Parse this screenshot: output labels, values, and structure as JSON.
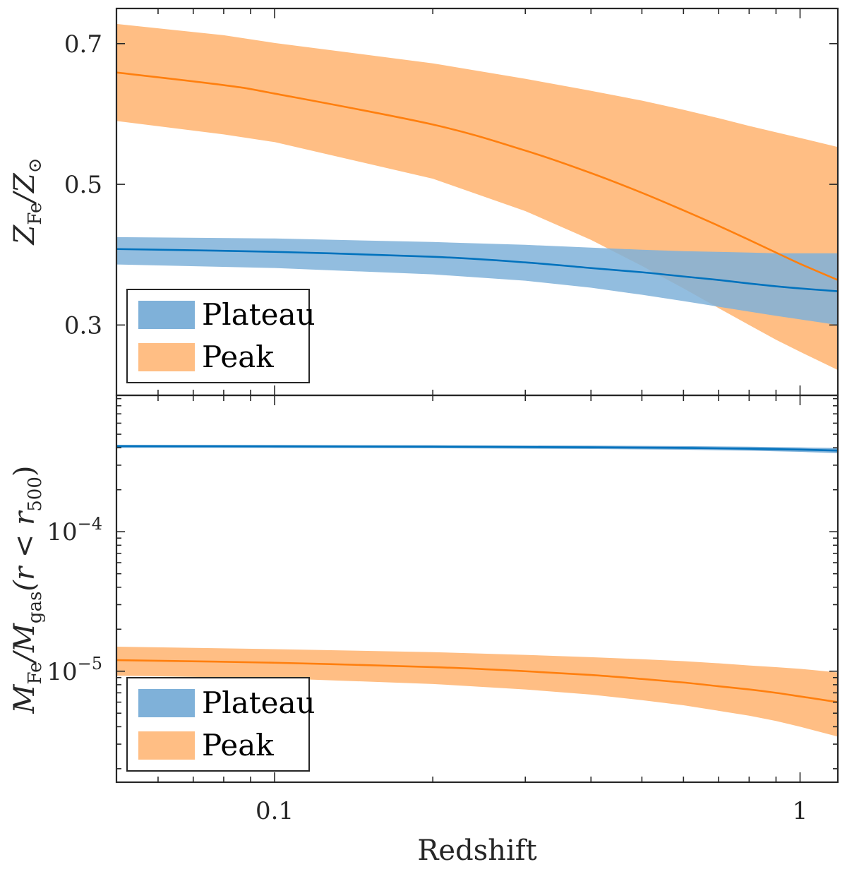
{
  "colors": {
    "plateau_line": "#0072BD",
    "plateau_band": "#7FB1D9",
    "peak_line": "#FF7F0E",
    "peak_band": "#FFBE84",
    "axes": "#262626"
  },
  "chart_data": [
    {
      "type": "line",
      "panel": "top",
      "xlabel": "",
      "ylabel": "Z_Fe/Z_⊙",
      "ylabel_parts": {
        "main": "Z",
        "sub": "Fe",
        "slash": "/Z",
        "sub2": "⊙"
      },
      "xscale": "log",
      "xlim": [
        0.05,
        1.18
      ],
      "ylim": [
        0.2,
        0.75
      ],
      "yticks": [
        0.3,
        0.5,
        0.7
      ],
      "ytick_labels": [
        "0.3",
        "0.5",
        "0.7"
      ],
      "grid": false,
      "legend": {
        "placement": "bottom-left",
        "entries": [
          "Plateau",
          "Peak"
        ]
      },
      "series": [
        {
          "name": "Plateau",
          "x": [
            0.05,
            0.1,
            0.2,
            0.3,
            0.4,
            0.5,
            0.6,
            0.7,
            0.8,
            0.9,
            1.0,
            1.18
          ],
          "y": [
            0.408,
            0.404,
            0.397,
            0.389,
            0.381,
            0.375,
            0.369,
            0.364,
            0.359,
            0.355,
            0.352,
            0.348
          ],
          "y_low": [
            0.386,
            0.381,
            0.372,
            0.363,
            0.353,
            0.343,
            0.334,
            0.326,
            0.319,
            0.313,
            0.308,
            0.3
          ],
          "y_high": [
            0.425,
            0.423,
            0.418,
            0.414,
            0.41,
            0.407,
            0.405,
            0.404,
            0.403,
            0.402,
            0.402,
            0.402
          ]
        },
        {
          "name": "Peak",
          "x": [
            0.05,
            0.08,
            0.1,
            0.2,
            0.3,
            0.4,
            0.5,
            0.6,
            0.7,
            0.8,
            0.9,
            1.0,
            1.18
          ],
          "y": [
            0.659,
            0.641,
            0.629,
            0.585,
            0.548,
            0.516,
            0.488,
            0.463,
            0.441,
            0.421,
            0.403,
            0.387,
            0.364
          ],
          "y_low": [
            0.59,
            0.571,
            0.56,
            0.508,
            0.462,
            0.421,
            0.384,
            0.352,
            0.324,
            0.3,
            0.279,
            0.262,
            0.236
          ],
          "y_high": [
            0.728,
            0.712,
            0.701,
            0.672,
            0.65,
            0.633,
            0.619,
            0.606,
            0.594,
            0.583,
            0.574,
            0.566,
            0.553
          ]
        }
      ]
    },
    {
      "type": "line",
      "panel": "bottom",
      "xlabel": "Redshift",
      "ylabel": "M_Fe/M_gas(r < r_500)",
      "ylabel_parts": {
        "main": "M",
        "sub": "Fe",
        "slash": "/M",
        "sub2": "gas",
        "rest": "(r < r",
        "sub3": "500",
        "close": ")"
      },
      "xscale": "log",
      "yscale": "log",
      "xlim": [
        0.05,
        1.18
      ],
      "ylim": [
        1.6e-06,
        0.00095
      ],
      "yticks": [
        1e-05,
        0.0001
      ],
      "ytick_labels": [
        {
          "base": "10",
          "exp": "−5"
        },
        {
          "base": "10",
          "exp": "−4"
        }
      ],
      "xticks": [
        0.1,
        1
      ],
      "xtick_labels": [
        "0.1",
        "1"
      ],
      "grid": false,
      "legend": {
        "placement": "bottom-left",
        "entries": [
          "Plateau",
          "Peak"
        ]
      },
      "series": [
        {
          "name": "Plateau",
          "x": [
            0.05,
            0.1,
            0.2,
            0.4,
            0.6,
            0.8,
            1.0,
            1.18
          ],
          "y": [
            0.00041,
            0.000409,
            0.000407,
            0.000403,
            0.000399,
            0.000394,
            0.000388,
            0.000382
          ],
          "y_low": [
            0.0004,
            0.000399,
            0.000397,
            0.000392,
            0.000387,
            0.000381,
            0.000374,
            0.000366
          ],
          "y_high": [
            0.00042,
            0.000419,
            0.000417,
            0.000414,
            0.000411,
            0.000407,
            0.000402,
            0.000398
          ]
        },
        {
          "name": "Peak",
          "x": [
            0.05,
            0.1,
            0.2,
            0.3,
            0.4,
            0.5,
            0.6,
            0.7,
            0.8,
            0.9,
            1.0,
            1.18
          ],
          "y": [
            1.2e-05,
            1.15e-05,
            1.07e-05,
            1e-05,
            9.4e-06,
            8.8e-06,
            8.3e-06,
            7.8e-06,
            7.4e-06,
            7e-06,
            6.6e-06,
            6e-06
          ],
          "y_low": [
            9.3e-06,
            8.9e-06,
            8.1e-06,
            7.4e-06,
            6.8e-06,
            6.2e-06,
            5.7e-06,
            5.2e-06,
            4.8e-06,
            4.4e-06,
            4e-06,
            3.4e-06
          ],
          "y_high": [
            1.5e-05,
            1.44e-05,
            1.37e-05,
            1.31e-05,
            1.26e-05,
            1.22e-05,
            1.18e-05,
            1.14e-05,
            1.1e-05,
            1.07e-05,
            1.04e-05,
            9.8e-06
          ]
        }
      ]
    }
  ]
}
